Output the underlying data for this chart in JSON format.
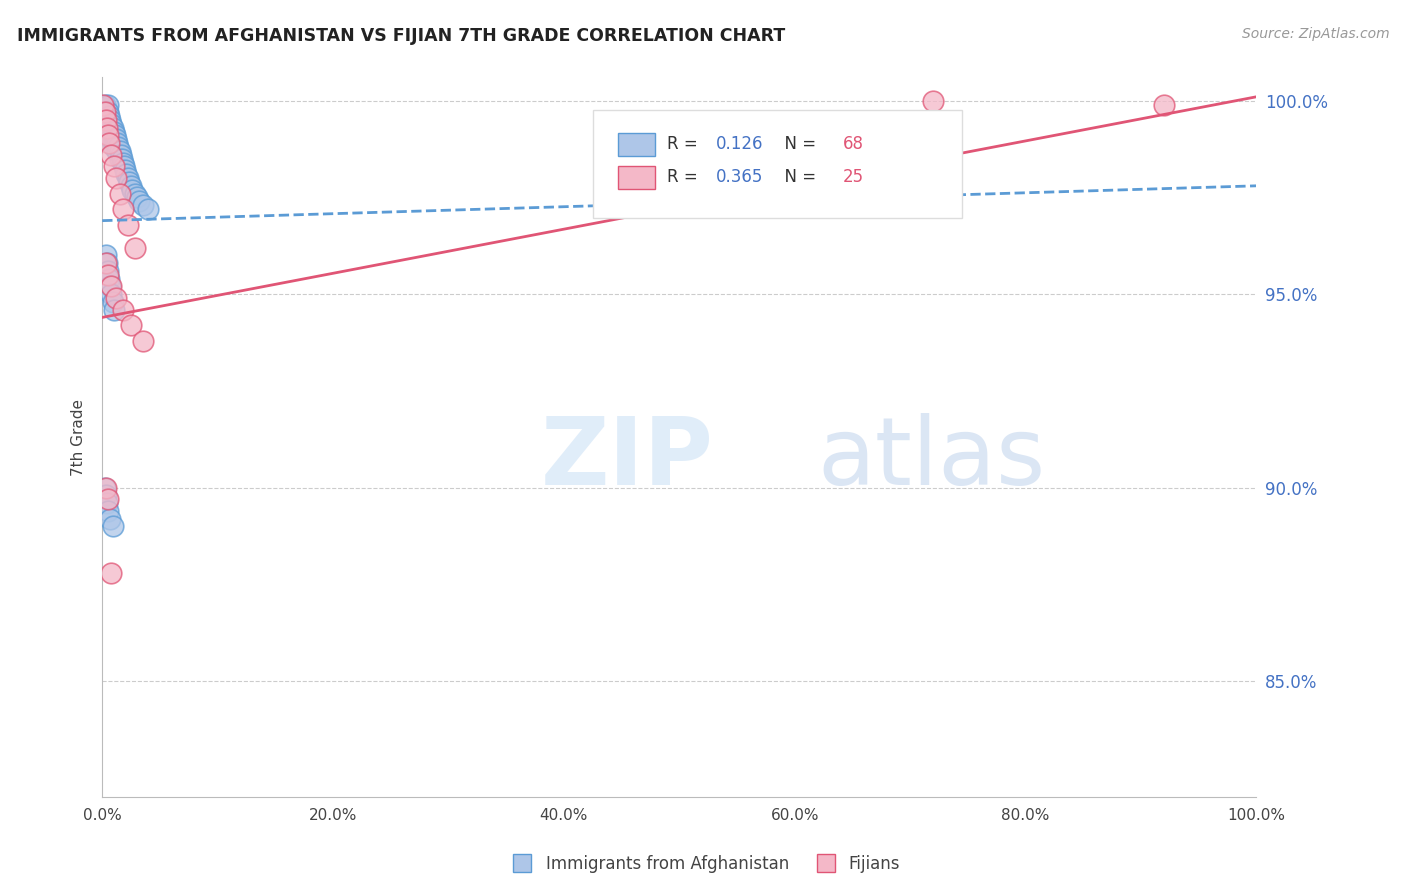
{
  "title": "IMMIGRANTS FROM AFGHANISTAN VS FIJIAN 7TH GRADE CORRELATION CHART",
  "source": "Source: ZipAtlas.com",
  "ylabel": "7th Grade",
  "legend_label1": "Immigrants from Afghanistan",
  "legend_label2": "Fijians",
  "R1": 0.126,
  "N1": 68,
  "R2": 0.365,
  "N2": 25,
  "color1_face": "#aec6e8",
  "color1_edge": "#5b9bd5",
  "color2_face": "#f4b8c8",
  "color2_edge": "#e05575",
  "trendline1_color": "#5b9bd5",
  "trendline2_color": "#e05575",
  "grid_color": "#cccccc",
  "xlim": [
    0.0,
    1.0
  ],
  "ylim": [
    0.82,
    1.006
  ],
  "yticks": [
    0.85,
    0.9,
    0.95,
    1.0
  ],
  "xticks": [
    0.0,
    0.2,
    0.4,
    0.6,
    0.8,
    1.0
  ],
  "blue_x": [
    0.001,
    0.001,
    0.002,
    0.002,
    0.002,
    0.003,
    0.003,
    0.003,
    0.003,
    0.004,
    0.004,
    0.004,
    0.005,
    0.005,
    0.005,
    0.005,
    0.006,
    0.006,
    0.006,
    0.007,
    0.007,
    0.007,
    0.008,
    0.008,
    0.008,
    0.009,
    0.009,
    0.01,
    0.01,
    0.01,
    0.011,
    0.011,
    0.012,
    0.012,
    0.013,
    0.013,
    0.014,
    0.015,
    0.015,
    0.016,
    0.017,
    0.018,
    0.019,
    0.02,
    0.021,
    0.022,
    0.023,
    0.025,
    0.026,
    0.028,
    0.03,
    0.032,
    0.035,
    0.04,
    0.003,
    0.004,
    0.005,
    0.006,
    0.007,
    0.008,
    0.009,
    0.01,
    0.002,
    0.003,
    0.004,
    0.005,
    0.007,
    0.009
  ],
  "blue_y": [
    0.998,
    0.996,
    0.999,
    0.997,
    0.995,
    0.998,
    0.996,
    0.994,
    0.992,
    0.997,
    0.995,
    0.993,
    0.999,
    0.997,
    0.995,
    0.993,
    0.996,
    0.994,
    0.992,
    0.995,
    0.993,
    0.991,
    0.994,
    0.992,
    0.99,
    0.993,
    0.991,
    0.992,
    0.99,
    0.988,
    0.991,
    0.989,
    0.99,
    0.988,
    0.989,
    0.987,
    0.988,
    0.987,
    0.985,
    0.986,
    0.985,
    0.984,
    0.983,
    0.982,
    0.981,
    0.98,
    0.979,
    0.978,
    0.977,
    0.976,
    0.975,
    0.974,
    0.973,
    0.972,
    0.96,
    0.958,
    0.956,
    0.954,
    0.952,
    0.95,
    0.948,
    0.946,
    0.9,
    0.898,
    0.896,
    0.894,
    0.892,
    0.89
  ],
  "pink_x": [
    0.001,
    0.002,
    0.003,
    0.004,
    0.005,
    0.006,
    0.008,
    0.01,
    0.012,
    0.015,
    0.018,
    0.022,
    0.028,
    0.003,
    0.005,
    0.008,
    0.012,
    0.018,
    0.025,
    0.035,
    0.003,
    0.005,
    0.008,
    0.72,
    0.92
  ],
  "pink_y": [
    0.999,
    0.997,
    0.995,
    0.993,
    0.991,
    0.989,
    0.986,
    0.983,
    0.98,
    0.976,
    0.972,
    0.968,
    0.962,
    0.958,
    0.955,
    0.952,
    0.949,
    0.946,
    0.942,
    0.938,
    0.9,
    0.897,
    0.878,
    1.0,
    0.999
  ],
  "trendline1_x0": 0.0,
  "trendline1_x1": 1.0,
  "trendline1_y0": 0.969,
  "trendline1_y1": 0.978,
  "trendline2_x0": 0.0,
  "trendline2_x1": 1.0,
  "trendline2_y0": 0.944,
  "trendline2_y1": 1.001
}
